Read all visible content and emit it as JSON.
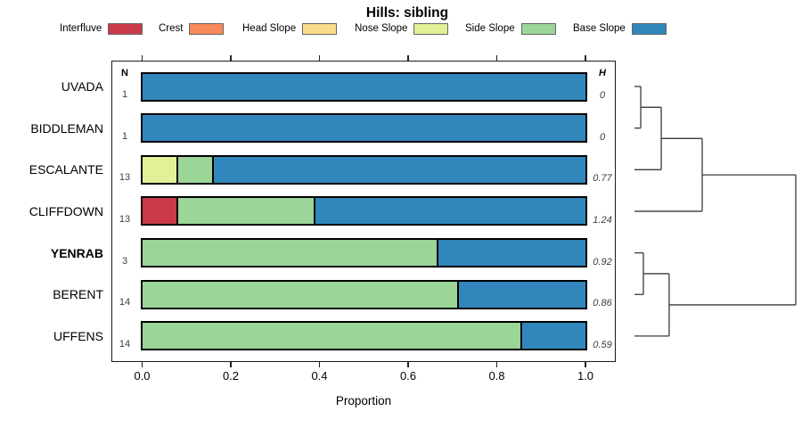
{
  "title": "Hills: sibling",
  "legend": [
    {
      "label": "Interfluve",
      "color": "#CB3A4B"
    },
    {
      "label": "Crest",
      "color": "#F6885A"
    },
    {
      "label": "Head Slope",
      "color": "#FBDC8C"
    },
    {
      "label": "Nose Slope",
      "color": "#E2F097"
    },
    {
      "label": "Side Slope",
      "color": "#9BD598"
    },
    {
      "label": "Base Slope",
      "color": "#3187BC"
    }
  ],
  "columns": {
    "n": "N",
    "h": "H"
  },
  "axis": {
    "xlabel": "Proportion",
    "ticks": [
      "0.0",
      "0.2",
      "0.4",
      "0.6",
      "0.8",
      "1.0"
    ]
  },
  "rows": [
    {
      "label": "UVADA",
      "bold": false,
      "n": "1",
      "h": "0"
    },
    {
      "label": "BIDDLEMAN",
      "bold": false,
      "n": "1",
      "h": "0"
    },
    {
      "label": "ESCALANTE",
      "bold": false,
      "n": "13",
      "h": "0.77"
    },
    {
      "label": "CLIFFDOWN",
      "bold": false,
      "n": "13",
      "h": "1.24"
    },
    {
      "label": "YENRAB",
      "bold": true,
      "n": "3",
      "h": "0.92"
    },
    {
      "label": "BERENT",
      "bold": false,
      "n": "14",
      "h": "0.86"
    },
    {
      "label": "UFFENS",
      "bold": false,
      "n": "14",
      "h": "0.59"
    }
  ],
  "chart_data": {
    "type": "bar",
    "stacked": true,
    "orientation": "horizontal",
    "title": "Hills: sibling",
    "xlabel": "Proportion",
    "xlim": [
      0,
      1
    ],
    "grid": false,
    "legend_position": "top",
    "categories": [
      "UVADA",
      "BIDDLEMAN",
      "ESCALANTE",
      "CLIFFDOWN",
      "YENRAB",
      "BERENT",
      "UFFENS"
    ],
    "n_values": [
      1,
      1,
      13,
      13,
      3,
      14,
      14
    ],
    "shannon_H": [
      0,
      0,
      0.77,
      1.24,
      0.92,
      0.86,
      0.59
    ],
    "series": [
      {
        "name": "Interfluve",
        "values": [
          0,
          0,
          0,
          0.077,
          0,
          0,
          0
        ]
      },
      {
        "name": "Crest",
        "values": [
          0,
          0,
          0,
          0,
          0,
          0,
          0
        ]
      },
      {
        "name": "Head Slope",
        "values": [
          0,
          0,
          0,
          0,
          0,
          0,
          0
        ]
      },
      {
        "name": "Nose Slope",
        "values": [
          0,
          0,
          0.077,
          0,
          0,
          0,
          0
        ]
      },
      {
        "name": "Side Slope",
        "values": [
          0,
          0,
          0.077,
          0.308,
          0.667,
          0.714,
          0.857
        ]
      },
      {
        "name": "Base Slope",
        "values": [
          1,
          1,
          0.846,
          0.615,
          0.333,
          0.286,
          0.143
        ]
      }
    ],
    "dendrogram": {
      "height": 1.0,
      "children": [
        {
          "height": 0.42,
          "children": [
            {
              "height": 0.166,
              "children": [
                {
                  "height": 0.039,
                  "children": [
                    {
                      "leaf": "UVADA"
                    },
                    {
                      "leaf": "BIDDLEMAN"
                    }
                  ]
                },
                {
                  "leaf": "ESCALANTE"
                }
              ]
            },
            {
              "leaf": "CLIFFDOWN"
            }
          ]
        },
        {
          "height": 0.215,
          "children": [
            {
              "height": 0.055,
              "children": [
                {
                  "leaf": "YENRAB"
                },
                {
                  "leaf": "BERENT"
                }
              ]
            },
            {
              "leaf": "UFFENS"
            }
          ]
        }
      ]
    }
  }
}
